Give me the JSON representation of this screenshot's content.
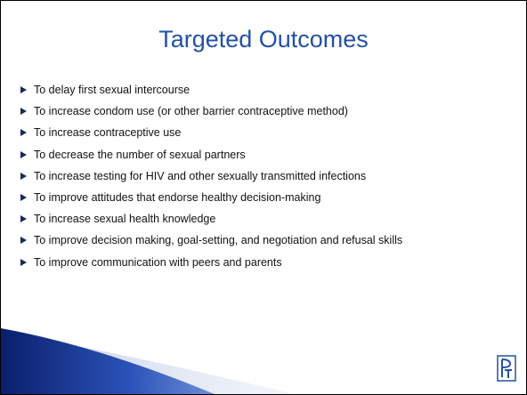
{
  "title": "Targeted Outcomes",
  "bullets": [
    "To delay first sexual intercourse",
    "To increase condom use  (or other barrier contraceptive method)",
    "To increase contraceptive use",
    "To decrease the number of sexual partners",
    "To increase testing for HIV and other sexually transmitted infections",
    "To improve attitudes that endorse healthy decision-making",
    "To increase sexual health knowledge",
    "To improve decision making, goal-setting, and negotiation and refusal skills",
    "To improve communication with peers and parents"
  ]
}
